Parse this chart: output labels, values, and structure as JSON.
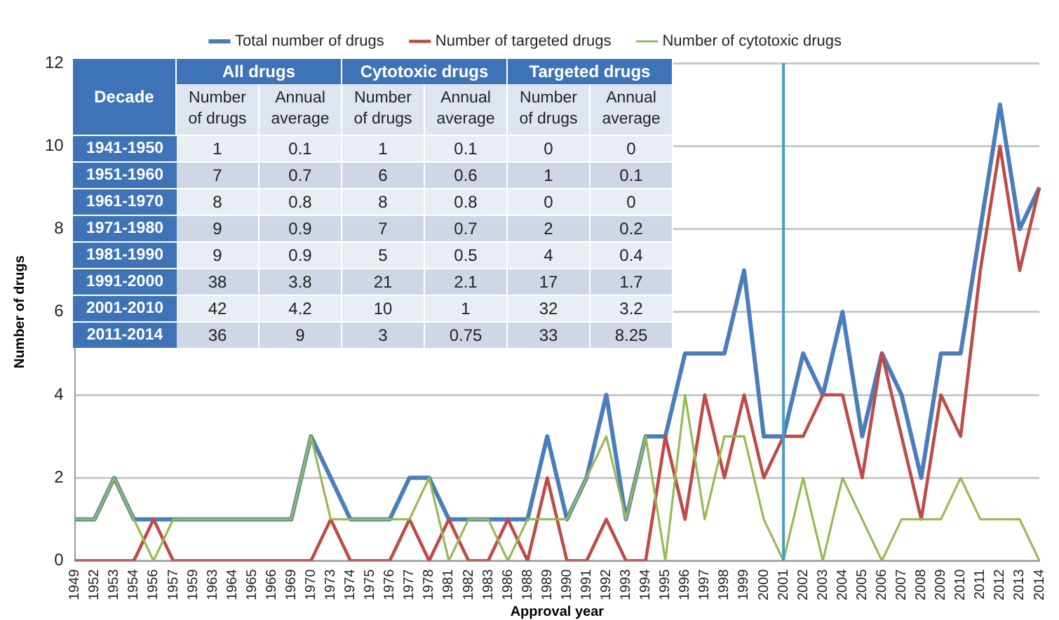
{
  "chart_data": [
    {
      "type": "line",
      "xlabel": "Approval year",
      "ylabel": "Number of drugs",
      "legend": "top",
      "grid": "y",
      "marker": "none",
      "line_style": "solid",
      "categories": [
        "1949",
        "1952",
        "1953",
        "1954",
        "1956",
        "1957",
        "1959",
        "1963",
        "1964",
        "1965",
        "1966",
        "1969",
        "1970",
        "1973",
        "1974",
        "1975",
        "1976",
        "1977",
        "1978",
        "1981",
        "1982",
        "1983",
        "1986",
        "1988",
        "1989",
        "1990",
        "1991",
        "1992",
        "1993",
        "1994",
        "1995",
        "1996",
        "1997",
        "1998",
        "1999",
        "2000",
        "2001",
        "2002",
        "2003",
        "2004",
        "2005",
        "2006",
        "2007",
        "2008",
        "2009",
        "2010",
        "2011",
        "2012",
        "2013",
        "2014"
      ],
      "ylim": [
        0,
        12
      ],
      "yticks": [
        0,
        2,
        4,
        6,
        8,
        10,
        12
      ],
      "series": [
        {
          "name": "Total number of drugs",
          "color": "#4a7ebb",
          "values": [
            1,
            1,
            2,
            1,
            1,
            1,
            1,
            1,
            1,
            1,
            1,
            1,
            3,
            2,
            1,
            1,
            1,
            2,
            2,
            1,
            1,
            1,
            1,
            1,
            3,
            1,
            2,
            4,
            1,
            3,
            3,
            5,
            5,
            5,
            7,
            3,
            3,
            5,
            4,
            6,
            3,
            5,
            4,
            2,
            5,
            5,
            8,
            11,
            8,
            9
          ]
        },
        {
          "name": "Number of targeted drugs",
          "color": "#be4b48",
          "values": [
            0,
            0,
            0,
            0,
            1,
            0,
            0,
            0,
            0,
            0,
            0,
            0,
            0,
            1,
            0,
            0,
            0,
            1,
            0,
            1,
            0,
            0,
            1,
            0,
            2,
            0,
            0,
            1,
            0,
            0,
            3,
            1,
            4,
            2,
            4,
            2,
            3,
            3,
            4,
            4,
            2,
            5,
            3,
            1,
            4,
            3,
            7,
            10,
            7,
            9
          ]
        },
        {
          "name": "Number of cytotoxic drugs",
          "color": "#98b954",
          "values": [
            1,
            1,
            2,
            1,
            0,
            1,
            1,
            1,
            1,
            1,
            1,
            1,
            3,
            1,
            1,
            1,
            1,
            1,
            2,
            0,
            1,
            1,
            0,
            1,
            1,
            1,
            2,
            3,
            1,
            3,
            0,
            4,
            1,
            3,
            3,
            1,
            0,
            2,
            0,
            2,
            1,
            0,
            1,
            1,
            1,
            2,
            1,
            1,
            1,
            0
          ]
        }
      ],
      "ref_lines": [
        {
          "axis": "x",
          "value": "2001",
          "color": "#4a9bc7"
        }
      ]
    },
    {
      "type": "heatmap",
      "data_labels": true,
      "ylabel": "Decade",
      "annotations": [
        "All drugs",
        "Cytotoxic drugs",
        "Targeted drugs"
      ],
      "categories": [
        "Number of drugs",
        "Annual average",
        "Number of drugs",
        "Annual average",
        "Number of drugs",
        "Annual average"
      ],
      "y_categories": [
        "1941-1950",
        "1951-1960",
        "1961-1970",
        "1971-1980",
        "1981-1990",
        "1991-2000",
        "2001-2010",
        "2011-2014"
      ],
      "cells": [
        [
          1,
          0.1,
          1,
          0.1,
          0,
          0
        ],
        [
          7,
          0.7,
          6,
          0.6,
          1,
          0.1
        ],
        [
          8,
          0.8,
          8,
          0.8,
          0,
          0
        ],
        [
          9,
          0.9,
          7,
          0.7,
          2,
          0.2
        ],
        [
          9,
          0.9,
          5,
          0.5,
          4,
          0.4
        ],
        [
          38,
          3.8,
          21,
          2.1,
          17,
          1.7
        ],
        [
          42,
          4.2,
          10,
          1,
          32,
          3.2
        ],
        [
          36,
          9,
          3,
          0.75,
          33,
          8.25
        ]
      ]
    }
  ]
}
